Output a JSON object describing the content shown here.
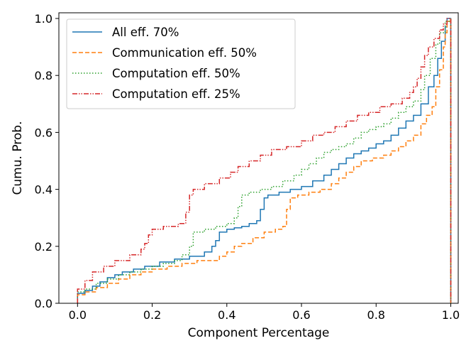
{
  "chart_data": {
    "type": "line",
    "subtype": "step-cdf",
    "title": "",
    "xlabel": "Component Percentage",
    "ylabel": "Cumu. Prob.",
    "xlim": [
      -0.05,
      1.02
    ],
    "ylim": [
      0.0,
      1.02
    ],
    "xticks": [
      "0.0",
      "0.2",
      "0.4",
      "0.6",
      "0.8",
      "1.0"
    ],
    "yticks": [
      "0.0",
      "0.2",
      "0.4",
      "0.6",
      "0.8",
      "1.0"
    ],
    "legend_position": "top-left",
    "series": [
      {
        "name": "All eff. 70%",
        "color": "#1f77b4",
        "dash": "solid",
        "points": [
          [
            0.0,
            0.0
          ],
          [
            0.0,
            0.035
          ],
          [
            0.02,
            0.045
          ],
          [
            0.04,
            0.06
          ],
          [
            0.06,
            0.075
          ],
          [
            0.08,
            0.09
          ],
          [
            0.1,
            0.1
          ],
          [
            0.12,
            0.11
          ],
          [
            0.15,
            0.12
          ],
          [
            0.18,
            0.13
          ],
          [
            0.22,
            0.145
          ],
          [
            0.26,
            0.155
          ],
          [
            0.3,
            0.165
          ],
          [
            0.34,
            0.18
          ],
          [
            0.36,
            0.2
          ],
          [
            0.37,
            0.22
          ],
          [
            0.38,
            0.25
          ],
          [
            0.4,
            0.26
          ],
          [
            0.42,
            0.265
          ],
          [
            0.44,
            0.27
          ],
          [
            0.46,
            0.28
          ],
          [
            0.48,
            0.29
          ],
          [
            0.49,
            0.33
          ],
          [
            0.5,
            0.37
          ],
          [
            0.51,
            0.38
          ],
          [
            0.54,
            0.39
          ],
          [
            0.57,
            0.4
          ],
          [
            0.6,
            0.41
          ],
          [
            0.63,
            0.43
          ],
          [
            0.66,
            0.45
          ],
          [
            0.68,
            0.47
          ],
          [
            0.7,
            0.49
          ],
          [
            0.72,
            0.51
          ],
          [
            0.74,
            0.525
          ],
          [
            0.76,
            0.535
          ],
          [
            0.78,
            0.545
          ],
          [
            0.8,
            0.56
          ],
          [
            0.82,
            0.57
          ],
          [
            0.84,
            0.59
          ],
          [
            0.86,
            0.615
          ],
          [
            0.88,
            0.64
          ],
          [
            0.9,
            0.66
          ],
          [
            0.92,
            0.7
          ],
          [
            0.94,
            0.76
          ],
          [
            0.955,
            0.8
          ],
          [
            0.965,
            0.86
          ],
          [
            0.975,
            0.92
          ],
          [
            0.985,
            0.97
          ],
          [
            0.99,
            1.0
          ],
          [
            1.0,
            1.0
          ],
          [
            1.0,
            0.0
          ]
        ]
      },
      {
        "name": "Communication eff. 50%",
        "color": "#ff7f0e",
        "dash": "dashed",
        "points": [
          [
            0.0,
            0.0
          ],
          [
            0.0,
            0.03
          ],
          [
            0.02,
            0.04
          ],
          [
            0.05,
            0.055
          ],
          [
            0.08,
            0.07
          ],
          [
            0.11,
            0.085
          ],
          [
            0.14,
            0.1
          ],
          [
            0.17,
            0.11
          ],
          [
            0.2,
            0.12
          ],
          [
            0.24,
            0.13
          ],
          [
            0.28,
            0.14
          ],
          [
            0.32,
            0.15
          ],
          [
            0.38,
            0.165
          ],
          [
            0.4,
            0.18
          ],
          [
            0.42,
            0.2
          ],
          [
            0.44,
            0.21
          ],
          [
            0.47,
            0.23
          ],
          [
            0.5,
            0.25
          ],
          [
            0.53,
            0.26
          ],
          [
            0.55,
            0.27
          ],
          [
            0.56,
            0.33
          ],
          [
            0.57,
            0.37
          ],
          [
            0.59,
            0.38
          ],
          [
            0.62,
            0.39
          ],
          [
            0.65,
            0.4
          ],
          [
            0.68,
            0.42
          ],
          [
            0.7,
            0.44
          ],
          [
            0.72,
            0.46
          ],
          [
            0.74,
            0.48
          ],
          [
            0.76,
            0.5
          ],
          [
            0.79,
            0.51
          ],
          [
            0.82,
            0.52
          ],
          [
            0.84,
            0.535
          ],
          [
            0.86,
            0.55
          ],
          [
            0.88,
            0.57
          ],
          [
            0.9,
            0.59
          ],
          [
            0.92,
            0.63
          ],
          [
            0.935,
            0.66
          ],
          [
            0.95,
            0.69
          ],
          [
            0.96,
            0.76
          ],
          [
            0.97,
            0.82
          ],
          [
            0.98,
            0.9
          ],
          [
            0.985,
            0.95
          ],
          [
            0.99,
            0.99
          ],
          [
            1.0,
            1.0
          ],
          [
            1.0,
            0.0
          ]
        ]
      },
      {
        "name": "Computation eff. 50%",
        "color": "#2ca02c",
        "dash": "dotted",
        "points": [
          [
            0.0,
            0.0
          ],
          [
            0.0,
            0.04
          ],
          [
            0.02,
            0.05
          ],
          [
            0.05,
            0.07
          ],
          [
            0.08,
            0.085
          ],
          [
            0.11,
            0.1
          ],
          [
            0.14,
            0.11
          ],
          [
            0.17,
            0.12
          ],
          [
            0.2,
            0.13
          ],
          [
            0.23,
            0.14
          ],
          [
            0.26,
            0.15
          ],
          [
            0.28,
            0.17
          ],
          [
            0.3,
            0.2
          ],
          [
            0.31,
            0.25
          ],
          [
            0.34,
            0.26
          ],
          [
            0.37,
            0.27
          ],
          [
            0.4,
            0.28
          ],
          [
            0.42,
            0.3
          ],
          [
            0.43,
            0.34
          ],
          [
            0.44,
            0.38
          ],
          [
            0.46,
            0.39
          ],
          [
            0.49,
            0.4
          ],
          [
            0.52,
            0.41
          ],
          [
            0.55,
            0.43
          ],
          [
            0.58,
            0.45
          ],
          [
            0.6,
            0.47
          ],
          [
            0.62,
            0.49
          ],
          [
            0.64,
            0.51
          ],
          [
            0.66,
            0.53
          ],
          [
            0.68,
            0.54
          ],
          [
            0.7,
            0.55
          ],
          [
            0.72,
            0.56
          ],
          [
            0.74,
            0.58
          ],
          [
            0.76,
            0.6
          ],
          [
            0.78,
            0.61
          ],
          [
            0.8,
            0.62
          ],
          [
            0.82,
            0.63
          ],
          [
            0.84,
            0.65
          ],
          [
            0.86,
            0.67
          ],
          [
            0.88,
            0.69
          ],
          [
            0.9,
            0.71
          ],
          [
            0.92,
            0.75
          ],
          [
            0.93,
            0.8
          ],
          [
            0.945,
            0.86
          ],
          [
            0.96,
            0.91
          ],
          [
            0.97,
            0.95
          ],
          [
            0.985,
            0.99
          ],
          [
            1.0,
            1.0
          ],
          [
            1.0,
            0.0
          ]
        ]
      },
      {
        "name": "Computation eff. 25%",
        "color": "#d62728",
        "dash": "dashdotdot",
        "points": [
          [
            0.0,
            0.0
          ],
          [
            0.0,
            0.05
          ],
          [
            0.02,
            0.08
          ],
          [
            0.04,
            0.11
          ],
          [
            0.07,
            0.13
          ],
          [
            0.1,
            0.15
          ],
          [
            0.14,
            0.17
          ],
          [
            0.17,
            0.19
          ],
          [
            0.18,
            0.21
          ],
          [
            0.19,
            0.24
          ],
          [
            0.2,
            0.26
          ],
          [
            0.23,
            0.27
          ],
          [
            0.27,
            0.28
          ],
          [
            0.29,
            0.32
          ],
          [
            0.3,
            0.38
          ],
          [
            0.31,
            0.4
          ],
          [
            0.34,
            0.42
          ],
          [
            0.38,
            0.44
          ],
          [
            0.41,
            0.46
          ],
          [
            0.43,
            0.48
          ],
          [
            0.46,
            0.5
          ],
          [
            0.49,
            0.52
          ],
          [
            0.52,
            0.54
          ],
          [
            0.56,
            0.55
          ],
          [
            0.6,
            0.57
          ],
          [
            0.63,
            0.59
          ],
          [
            0.66,
            0.6
          ],
          [
            0.69,
            0.62
          ],
          [
            0.72,
            0.64
          ],
          [
            0.75,
            0.66
          ],
          [
            0.78,
            0.67
          ],
          [
            0.81,
            0.69
          ],
          [
            0.84,
            0.7
          ],
          [
            0.87,
            0.72
          ],
          [
            0.89,
            0.74
          ],
          [
            0.9,
            0.76
          ],
          [
            0.91,
            0.79
          ],
          [
            0.92,
            0.83
          ],
          [
            0.93,
            0.87
          ],
          [
            0.94,
            0.9
          ],
          [
            0.955,
            0.93
          ],
          [
            0.97,
            0.96
          ],
          [
            0.98,
            0.98
          ],
          [
            0.99,
            1.0
          ],
          [
            1.0,
            1.0
          ],
          [
            1.0,
            0.0
          ]
        ]
      }
    ]
  }
}
